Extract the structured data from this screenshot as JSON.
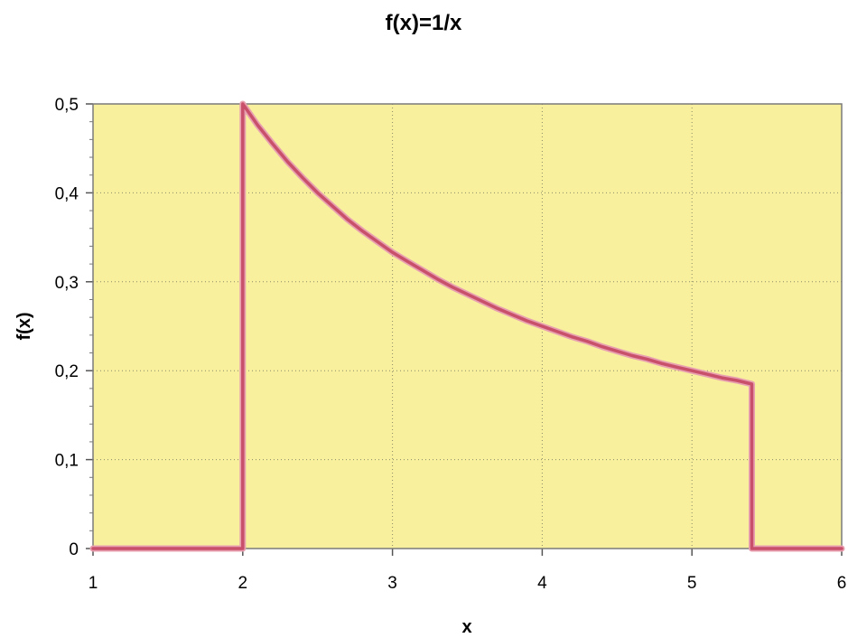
{
  "chart_data": {
    "type": "line",
    "title": "f(x)=1/x",
    "xlabel": "x",
    "ylabel": "f(x)",
    "xlim": [
      1,
      6
    ],
    "ylim": [
      0,
      0.5
    ],
    "x_ticks": [
      "1",
      "2",
      "3",
      "4",
      "5",
      "6"
    ],
    "y_ticks": [
      "0",
      "0,1",
      "0,2",
      "0,3",
      "0,4",
      "0,5"
    ],
    "grid": true,
    "legend": "none",
    "colors": {
      "plot_background": "#f8f09c",
      "line": "#c8506a",
      "line_glow": "#e8a0b0",
      "grid": "#8a8a6a"
    },
    "series": [
      {
        "x": [
          1,
          1.9,
          2,
          2,
          2.05,
          2.1,
          2.2,
          2.3,
          2.4,
          2.5,
          2.6,
          2.7,
          2.8,
          2.9,
          3,
          3.1,
          3.2,
          3.3,
          3.4,
          3.5,
          3.6,
          3.7,
          3.8,
          3.9,
          4,
          4.1,
          4.2,
          4.3,
          4.4,
          4.5,
          4.6,
          4.7,
          4.8,
          4.9,
          5,
          5.1,
          5.2,
          5.3,
          5.4,
          5.4,
          5.45,
          5.55,
          6
        ],
        "y": [
          0,
          0,
          0,
          0.5,
          0.488,
          0.476,
          0.455,
          0.435,
          0.417,
          0.4,
          0.385,
          0.37,
          0.357,
          0.345,
          0.333,
          0.323,
          0.313,
          0.303,
          0.294,
          0.286,
          0.278,
          0.27,
          0.263,
          0.256,
          0.25,
          0.244,
          0.238,
          0.233,
          0.227,
          0.222,
          0.217,
          0.213,
          0.208,
          0.204,
          0.2,
          0.196,
          0.192,
          0.189,
          0.185,
          0,
          0,
          0,
          0
        ]
      }
    ]
  }
}
